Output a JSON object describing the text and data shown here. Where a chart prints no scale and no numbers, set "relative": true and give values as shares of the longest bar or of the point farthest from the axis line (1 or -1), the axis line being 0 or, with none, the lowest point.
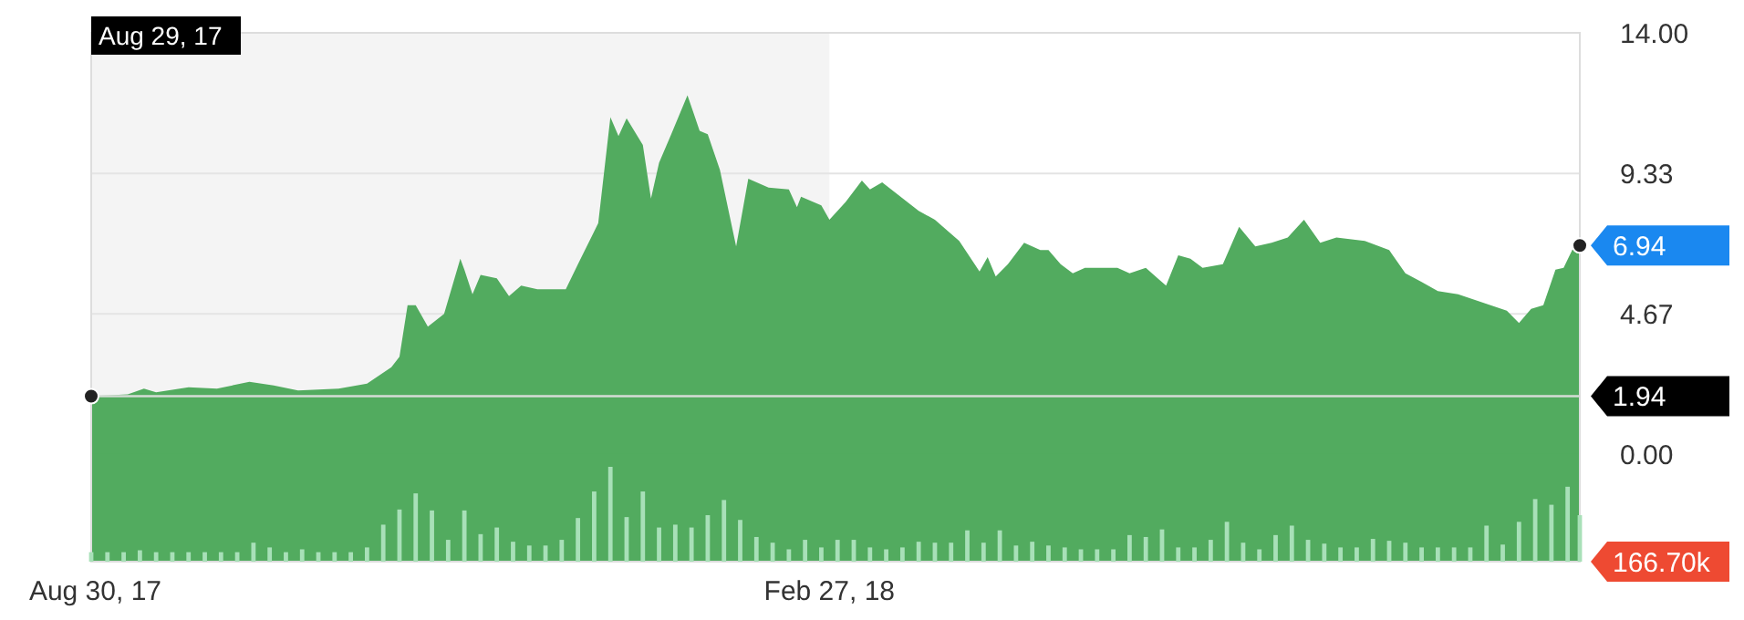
{
  "chart_data": [
    {
      "type": "area",
      "xlim": [
        "2017-08-29",
        "2018-08-31"
      ],
      "ylim": [
        -3.55,
        14
      ],
      "yticks": [
        {
          "value": 14,
          "label": "14.00"
        },
        {
          "value": 9.33,
          "label": "9.33"
        },
        {
          "value": 4.67,
          "label": "4.67"
        },
        {
          "value": 0,
          "label": "0.00"
        }
      ],
      "xticks": [
        {
          "value": "2017-08-30",
          "label": "Aug 30, 17"
        },
        {
          "value": "2018-02-27",
          "label": "Feb 27, 18"
        }
      ],
      "grid": "y",
      "bands": [
        {
          "axis": "x",
          "from": "2017-08-29",
          "to": "2018-02-27",
          "color": "#f4f4f4"
        }
      ],
      "ref_lines": [
        {
          "axis": "y",
          "value": 1.94,
          "label": "1.94",
          "color": "#d6dcd6"
        }
      ],
      "annotations": [
        "Aug 29, 17"
      ],
      "series": [
        {
          "color": "#52ab5f",
          "x": [
            "2017-08-29",
            "2017-09-07",
            "2017-09-11",
            "2017-09-14",
            "2017-09-22",
            "2017-09-29",
            "2017-10-07",
            "2017-10-13",
            "2017-10-19",
            "2017-10-29",
            "2017-11-05",
            "2017-11-11",
            "2017-11-13",
            "2017-11-15",
            "2017-11-17",
            "2017-11-20",
            "2017-11-24",
            "2017-11-28",
            "2017-11-29",
            "2017-12-01",
            "2017-12-03",
            "2017-12-07",
            "2017-12-10",
            "2017-12-13",
            "2017-12-17",
            "2017-12-24",
            "2017-12-27",
            "2018-01-01",
            "2018-01-04",
            "2018-01-06",
            "2018-01-08",
            "2018-01-12",
            "2018-01-14",
            "2018-01-16",
            "2018-01-19",
            "2018-01-23",
            "2018-01-26",
            "2018-01-28",
            "2018-01-31",
            "2018-02-04",
            "2018-02-07",
            "2018-02-12",
            "2018-02-17",
            "2018-02-19",
            "2018-02-20",
            "2018-02-25",
            "2018-02-27",
            "2018-03-03",
            "2018-03-07",
            "2018-03-09",
            "2018-03-12",
            "2018-03-21",
            "2018-03-25",
            "2018-03-31",
            "2018-04-05",
            "2018-04-07",
            "2018-04-09",
            "2018-04-12",
            "2018-04-16",
            "2018-04-20",
            "2018-04-22",
            "2018-04-25",
            "2018-04-28",
            "2018-05-01",
            "2018-05-06",
            "2018-05-09",
            "2018-05-12",
            "2018-05-16",
            "2018-05-21",
            "2018-05-24",
            "2018-05-27",
            "2018-05-30",
            "2018-06-04",
            "2018-06-08",
            "2018-06-12",
            "2018-06-16",
            "2018-06-20",
            "2018-06-24",
            "2018-06-28",
            "2018-07-02",
            "2018-07-09",
            "2018-07-15",
            "2018-07-19",
            "2018-07-23",
            "2018-07-27",
            "2018-08-01",
            "2018-08-09",
            "2018-08-13",
            "2018-08-16",
            "2018-08-19",
            "2018-08-22",
            "2018-08-25",
            "2018-08-27",
            "2018-08-30",
            "2018-08-31"
          ],
          "values": [
            1.94,
            2.0,
            2.19,
            2.07,
            2.24,
            2.19,
            2.42,
            2.3,
            2.13,
            2.19,
            2.36,
            2.9,
            3.25,
            4.96,
            4.96,
            4.25,
            4.67,
            6.5,
            6.14,
            5.32,
            5.97,
            5.85,
            5.26,
            5.61,
            5.49,
            5.49,
            6.32,
            7.68,
            11.2,
            10.57,
            11.16,
            10.28,
            8.5,
            9.69,
            10.63,
            11.93,
            10.75,
            10.63,
            9.45,
            6.91,
            9.16,
            8.86,
            8.8,
            8.21,
            8.56,
            8.27,
            7.8,
            8.39,
            9.1,
            8.8,
            9.04,
            8.09,
            7.8,
            7.09,
            6.08,
            6.56,
            5.91,
            6.32,
            7.03,
            6.79,
            6.79,
            6.32,
            6.02,
            6.2,
            6.2,
            6.2,
            6.02,
            6.2,
            5.61,
            6.62,
            6.5,
            6.2,
            6.32,
            7.56,
            6.91,
            7.03,
            7.21,
            7.8,
            7.03,
            7.21,
            7.09,
            6.79,
            6.02,
            5.73,
            5.43,
            5.32,
            4.96,
            4.78,
            4.37,
            4.84,
            4.96,
            6.14,
            6.2,
            7.03,
            6.94
          ],
          "value_labels": [
            null,
            null,
            null,
            null,
            null,
            null,
            null,
            null,
            null,
            null,
            null,
            null,
            null,
            null,
            null,
            null,
            null,
            null,
            null,
            null,
            null,
            null,
            null,
            null,
            null,
            null,
            null,
            null,
            null,
            null,
            null,
            null,
            null,
            null,
            null,
            null,
            null,
            null,
            null,
            null,
            null,
            null,
            null,
            null,
            null,
            null,
            null,
            null,
            null,
            null,
            null,
            null,
            null,
            null,
            null,
            null,
            null,
            null,
            null,
            null,
            null,
            null,
            null,
            null,
            null,
            null,
            null,
            null,
            null,
            null,
            null,
            null,
            null,
            null,
            null,
            null,
            null,
            null,
            null,
            null,
            null,
            null,
            null,
            null,
            null,
            null,
            null,
            null,
            null,
            null,
            null,
            null,
            null,
            null,
            "6.94"
          ]
        }
      ]
    },
    {
      "type": "bar",
      "relative": true,
      "annotations": [
        "166.70k"
      ],
      "xlim": [
        "2017-08-29",
        "2018-08-31"
      ],
      "color": "#a8e0b8",
      "x": [
        "2017-08-29",
        "2017-09-02",
        "2017-09-06",
        "2017-09-10",
        "2017-09-14",
        "2017-09-18",
        "2017-09-22",
        "2017-09-26",
        "2017-09-30",
        "2017-10-04",
        "2017-10-08",
        "2017-10-12",
        "2017-10-16",
        "2017-10-20",
        "2017-10-24",
        "2017-10-28",
        "2017-11-01",
        "2017-11-05",
        "2017-11-09",
        "2017-11-13",
        "2017-11-17",
        "2017-11-21",
        "2017-11-25",
        "2017-11-29",
        "2017-12-03",
        "2017-12-07",
        "2017-12-11",
        "2017-12-15",
        "2017-12-19",
        "2017-12-23",
        "2017-12-27",
        "2017-12-31",
        "2018-01-04",
        "2018-01-08",
        "2018-01-12",
        "2018-01-16",
        "2018-01-20",
        "2018-01-24",
        "2018-01-28",
        "2018-02-01",
        "2018-02-05",
        "2018-02-09",
        "2018-02-13",
        "2018-02-17",
        "2018-02-21",
        "2018-02-25",
        "2018-03-01",
        "2018-03-05",
        "2018-03-09",
        "2018-03-13",
        "2018-03-17",
        "2018-03-21",
        "2018-03-25",
        "2018-03-29",
        "2018-04-02",
        "2018-04-06",
        "2018-04-10",
        "2018-04-14",
        "2018-04-18",
        "2018-04-22",
        "2018-04-26",
        "2018-04-30",
        "2018-05-04",
        "2018-05-08",
        "2018-05-12",
        "2018-05-16",
        "2018-05-20",
        "2018-05-24",
        "2018-05-28",
        "2018-06-01",
        "2018-06-05",
        "2018-06-09",
        "2018-06-13",
        "2018-06-17",
        "2018-06-21",
        "2018-06-25",
        "2018-06-29",
        "2018-07-03",
        "2018-07-07",
        "2018-07-11",
        "2018-07-15",
        "2018-07-19",
        "2018-07-23",
        "2018-07-27",
        "2018-07-31",
        "2018-08-04",
        "2018-08-08",
        "2018-08-12",
        "2018-08-16",
        "2018-08-20",
        "2018-08-24",
        "2018-08-28",
        "2018-08-31"
      ],
      "values": [
        0.1,
        0.1,
        0.1,
        0.12,
        0.1,
        0.1,
        0.1,
        0.1,
        0.1,
        0.1,
        0.2,
        0.15,
        0.1,
        0.13,
        0.1,
        0.1,
        0.1,
        0.15,
        0.39,
        0.55,
        0.72,
        0.54,
        0.23,
        0.54,
        0.29,
        0.36,
        0.21,
        0.17,
        0.17,
        0.23,
        0.46,
        0.74,
        1,
        0.47,
        0.74,
        0.36,
        0.39,
        0.36,
        0.49,
        0.65,
        0.44,
        0.26,
        0.2,
        0.13,
        0.23,
        0.15,
        0.23,
        0.23,
        0.15,
        0.13,
        0.15,
        0.21,
        0.2,
        0.2,
        0.33,
        0.2,
        0.33,
        0.17,
        0.21,
        0.17,
        0.15,
        0.13,
        0.13,
        0.13,
        0.28,
        0.26,
        0.34,
        0.15,
        0.15,
        0.23,
        0.42,
        0.2,
        0.13,
        0.28,
        0.38,
        0.23,
        0.19,
        0.15,
        0.15,
        0.24,
        0.22,
        0.2,
        0.15,
        0.15,
        0.15,
        0.15,
        0.38,
        0.18,
        0.42,
        0.66,
        0.6,
        0.79,
        0.49
      ]
    }
  ]
}
